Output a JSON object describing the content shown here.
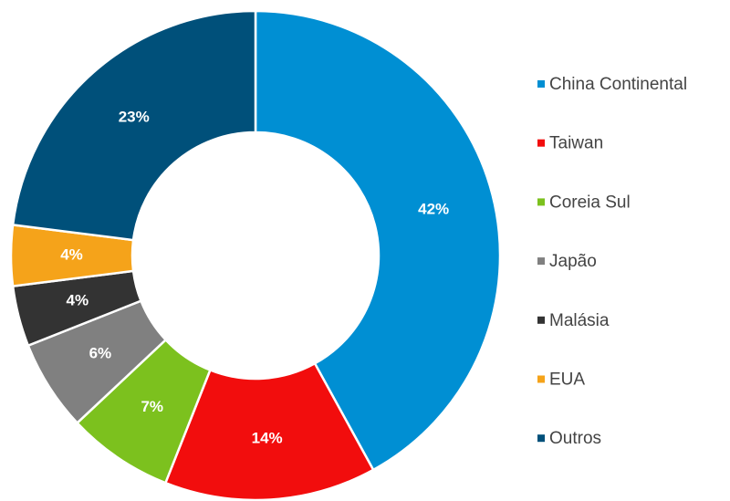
{
  "chart_data": {
    "type": "donut",
    "categories": [
      "China Continental",
      "Taiwan",
      "Coreia Sul",
      "Japão",
      "Malásia",
      "EUA",
      "Outros"
    ],
    "values": [
      42,
      14,
      7,
      6,
      4,
      4,
      23
    ],
    "value_labels": [
      "42%",
      "14%",
      "7%",
      "6%",
      "4%",
      "4%",
      "23%"
    ],
    "colors": [
      "#008fd3",
      "#f20d0d",
      "#7cc11e",
      "#808080",
      "#333333",
      "#f5a31a",
      "#00507a"
    ],
    "legend": "right"
  }
}
